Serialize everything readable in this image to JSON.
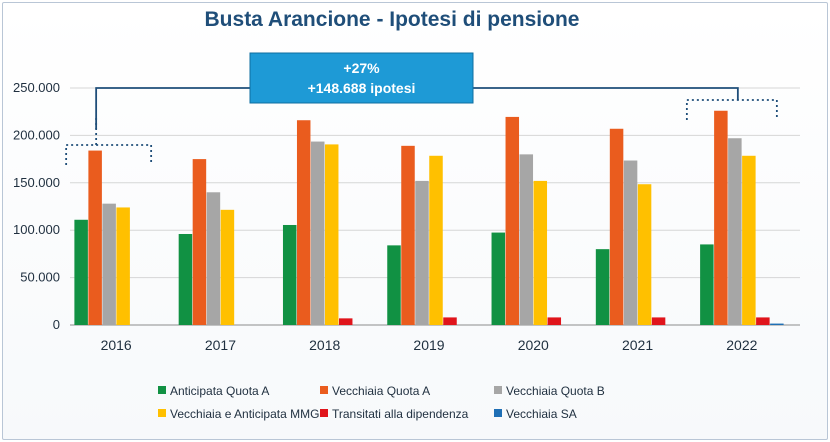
{
  "chart_data": {
    "type": "bar",
    "title": "Busta Arancione - Ipotesi di pensione",
    "categories": [
      "2016",
      "2017",
      "2018",
      "2019",
      "2020",
      "2021",
      "2022"
    ],
    "ylim": [
      0,
      250000
    ],
    "yticks": [
      0,
      50000,
      100000,
      150000,
      200000,
      250000
    ],
    "ytick_labels": [
      "0",
      "50.000",
      "100.000",
      "150.000",
      "200.000",
      "250.000"
    ],
    "grid": true,
    "legend_position": "bottom",
    "series": [
      {
        "name": "Anticipata Quota A",
        "color": "#119143",
        "values": [
          111000,
          96000,
          105500,
          84000,
          97500,
          80000,
          85000
        ]
      },
      {
        "name": "Vecchiaia Quota A",
        "color": "#ea5c1e",
        "values": [
          184000,
          175000,
          216000,
          189000,
          219500,
          207000,
          226000
        ]
      },
      {
        "name": "Vecchiaia Quota B",
        "color": "#a6a6a6",
        "values": [
          128000,
          140000,
          193500,
          152000,
          180000,
          173500,
          197000
        ]
      },
      {
        "name": "Vecchiaia e Anticipata MMG",
        "color": "#ffc000",
        "values": [
          124000,
          121500,
          190500,
          178500,
          152000,
          148500,
          178500
        ]
      },
      {
        "name": "Transitati alla dipendenza",
        "color": "#e0141b",
        "values": [
          0,
          0,
          7000,
          8000,
          8000,
          8000,
          8000
        ]
      },
      {
        "name": "Vecchiaia SA",
        "color": "#1f6fb5",
        "values": [
          0,
          0,
          0,
          0,
          0,
          0,
          1500
        ]
      }
    ],
    "annotation": {
      "line1": "+27%",
      "line2": "+148.688 ipotesi",
      "color": "#1e9ad6",
      "from_category": "2016",
      "to_category": "2022"
    }
  }
}
